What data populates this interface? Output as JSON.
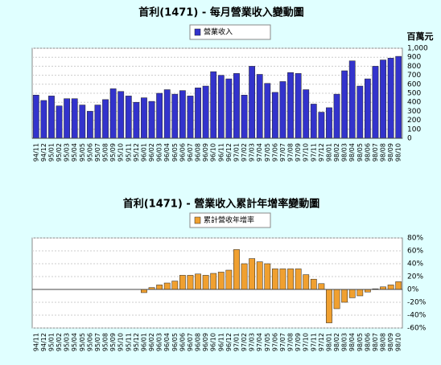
{
  "chart_data": [
    {
      "type": "bar",
      "title": "首利(1471) - 每月營業收入變動圖",
      "y_label": "百萬元",
      "categories": [
        "94/11",
        "94/12",
        "95/01",
        "95/02",
        "95/03",
        "95/04",
        "95/05",
        "95/06",
        "95/07",
        "95/08",
        "95/09",
        "95/10",
        "95/11",
        "95/12",
        "96/01",
        "96/02",
        "96/03",
        "96/04",
        "96/05",
        "96/06",
        "96/07",
        "96/08",
        "96/09",
        "96/10",
        "96/11",
        "96/12",
        "97/01",
        "97/02",
        "97/03",
        "97/04",
        "97/05",
        "97/06",
        "97/07",
        "97/08",
        "97/09",
        "97/10",
        "97/11",
        "97/12",
        "98/01",
        "98/02",
        "98/03",
        "98/04",
        "98/05",
        "98/06",
        "98/07",
        "98/08",
        "98/09",
        "98/10"
      ],
      "series": [
        {
          "name": "營業收入",
          "color": "#3333cc",
          "values": [
            480,
            420,
            470,
            360,
            440,
            440,
            370,
            300,
            370,
            430,
            550,
            520,
            470,
            400,
            450,
            410,
            500,
            540,
            490,
            530,
            470,
            560,
            580,
            740,
            700,
            660,
            720,
            480,
            800,
            710,
            610,
            510,
            630,
            730,
            720,
            540,
            380,
            290,
            340,
            490,
            750,
            860,
            580,
            660,
            800,
            870,
            890,
            910
          ]
        }
      ],
      "ylim": [
        0,
        1000
      ],
      "yticks": [
        0,
        100,
        200,
        300,
        400,
        500,
        600,
        700,
        800,
        900,
        {
          "value": 1000,
          "label": "1,000"
        }
      ],
      "grid": true,
      "legend": "top"
    },
    {
      "type": "bar",
      "title": "首利(1471) -  營業收入累計年增率變動圖",
      "categories": [
        "94/11",
        "94/12",
        "95/01",
        "95/02",
        "95/03",
        "95/04",
        "95/05",
        "95/06",
        "95/07",
        "95/08",
        "95/09",
        "95/10",
        "95/11",
        "95/12",
        "96/01",
        "96/02",
        "96/03",
        "96/04",
        "96/05",
        "96/06",
        "96/07",
        "96/08",
        "96/09",
        "96/10",
        "96/11",
        "96/12",
        "97/01",
        "97/02",
        "97/03",
        "97/04",
        "97/05",
        "97/06",
        "97/07",
        "97/08",
        "97/09",
        "97/10",
        "97/11",
        "97/12",
        "98/01",
        "98/02",
        "98/03",
        "98/04",
        "98/05",
        "98/06",
        "98/07",
        "98/08",
        "98/09",
        "98/10"
      ],
      "series": [
        {
          "name": "累計營收年增率",
          "color": "#f0a030",
          "values": [
            null,
            null,
            null,
            null,
            null,
            null,
            null,
            null,
            null,
            null,
            null,
            null,
            null,
            null,
            -5,
            3,
            7,
            10,
            13,
            22,
            22,
            24,
            22,
            25,
            27,
            30,
            62,
            40,
            48,
            43,
            40,
            32,
            32,
            32,
            32,
            23,
            16,
            9,
            -52,
            -30,
            -20,
            -13,
            -10,
            -4,
            1,
            4,
            7,
            12
          ]
        }
      ],
      "ylim": [
        -60,
        80
      ],
      "yticks": [
        {
          "value": -60,
          "label": "-60%"
        },
        {
          "value": -40,
          "label": "-40%"
        },
        {
          "value": -20,
          "label": "-20%"
        },
        {
          "value": 0,
          "label": "0%"
        },
        {
          "value": 20,
          "label": "20%"
        },
        {
          "value": 40,
          "label": "40%"
        },
        {
          "value": 60,
          "label": "60%"
        },
        {
          "value": 80,
          "label": "80%"
        }
      ],
      "grid": true,
      "legend": "top"
    }
  ]
}
